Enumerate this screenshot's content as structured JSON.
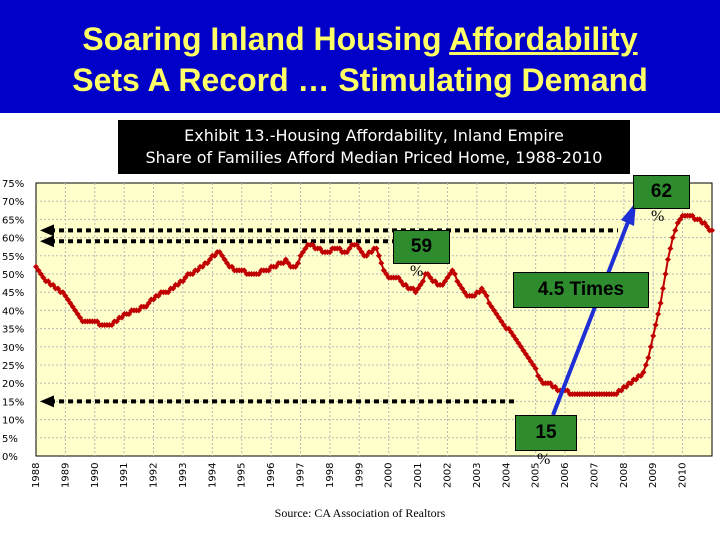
{
  "slide": {
    "title_line1_pre": "Soaring Inland Housing ",
    "title_line1_underlined": "Affordability",
    "title_line2": "Sets A Record … Stimulating Demand",
    "title_color": "#ffff66",
    "header_bg": "#0000c8"
  },
  "exhibit": {
    "line1": "Exhibit 13.-Housing Affordability, Inland Empire",
    "line2": "Share of Families Afford Median Priced Home, 1988-2010"
  },
  "callouts": {
    "c62": "62",
    "c62_unit": "%",
    "c59": "59",
    "c59_unit": "%",
    "times": "4.5 Times",
    "c15": "15",
    "c15_unit": "%",
    "fill": "#2e8b2e"
  },
  "source": "Source:  CA Association of Realtors",
  "chart_data": {
    "type": "line",
    "x_start_year": 1988,
    "points_per_year": 12,
    "ylim": [
      0,
      75
    ],
    "y_ticks": [
      "0%",
      "5%",
      "10%",
      "15%",
      "20%",
      "25%",
      "30%",
      "35%",
      "40%",
      "45%",
      "50%",
      "55%",
      "60%",
      "65%",
      "70%",
      "75%"
    ],
    "x_tick_labels": [
      "1988",
      "1989",
      "1990",
      "1991",
      "1992",
      "1993",
      "1994",
      "1995",
      "1996",
      "1997",
      "1998",
      "1999",
      "2000",
      "2001",
      "2002",
      "2003",
      "2004",
      "2005",
      "2006",
      "2007",
      "2008",
      "2009",
      "2010"
    ],
    "series": [
      {
        "color": "#c00000",
        "values": [
          52,
          51,
          50,
          49,
          48,
          48,
          47,
          47,
          46,
          46,
          45,
          45,
          44,
          43,
          42,
          41,
          40,
          39,
          38,
          37,
          37,
          37,
          37,
          37,
          37,
          37,
          36,
          36,
          36,
          36,
          36,
          36,
          37,
          37,
          38,
          38,
          39,
          39,
          39,
          40,
          40,
          40,
          40,
          41,
          41,
          41,
          42,
          43,
          43,
          44,
          44,
          45,
          45,
          45,
          45,
          46,
          46,
          47,
          47,
          48,
          48,
          49,
          50,
          50,
          50,
          51,
          51,
          52,
          52,
          53,
          53,
          54,
          55,
          55,
          56,
          56,
          55,
          54,
          53,
          52,
          52,
          51,
          51,
          51,
          51,
          51,
          50,
          50,
          50,
          50,
          50,
          50,
          51,
          51,
          51,
          51,
          52,
          52,
          52,
          53,
          53,
          53,
          54,
          53,
          52,
          52,
          52,
          53,
          55,
          56,
          57,
          58,
          58,
          58,
          57,
          57,
          57,
          56,
          56,
          56,
          56,
          57,
          57,
          57,
          57,
          56,
          56,
          56,
          57,
          58,
          58,
          58,
          57,
          56,
          55,
          55,
          56,
          56,
          57,
          57,
          55,
          53,
          51,
          50,
          49,
          49,
          49,
          49,
          49,
          48,
          47,
          47,
          46,
          46,
          46,
          45,
          46,
          47,
          48,
          50,
          50,
          49,
          48,
          48,
          47,
          47,
          47,
          48,
          49,
          50,
          51,
          50,
          48,
          47,
          46,
          45,
          44,
          44,
          44,
          44,
          45,
          45,
          46,
          45,
          44,
          42,
          41,
          40,
          39,
          38,
          37,
          36,
          35,
          35,
          34,
          33,
          32,
          31,
          30,
          29,
          28,
          27,
          26,
          25,
          24,
          22,
          21,
          20,
          20,
          20,
          20,
          19,
          19,
          18,
          18,
          18,
          18,
          18,
          17,
          17,
          17,
          17,
          17,
          17,
          17,
          17,
          17,
          17,
          17,
          17,
          17,
          17,
          17,
          17,
          17,
          17,
          17,
          17,
          18,
          18,
          19,
          19,
          20,
          20,
          21,
          21,
          22,
          22,
          23,
          25,
          27,
          30,
          33,
          36,
          39,
          42,
          46,
          50,
          54,
          57,
          60,
          62,
          64,
          65,
          66,
          66,
          66,
          66,
          66,
          65,
          65,
          65,
          64,
          64,
          63,
          62,
          62
        ]
      }
    ]
  }
}
